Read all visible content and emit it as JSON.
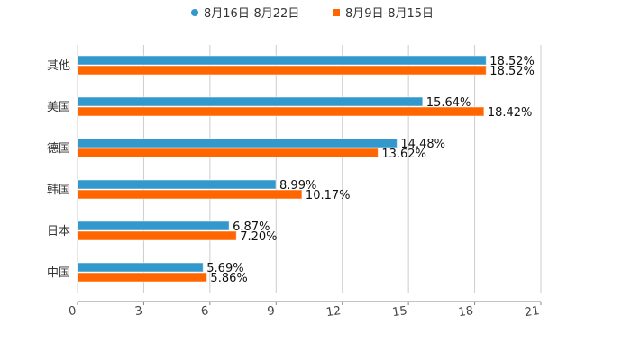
{
  "legend": {
    "series": [
      {
        "name": "8月16日-8月22日",
        "color": "#3399cc",
        "shape": "circle"
      },
      {
        "name": "8月9日-8月15日",
        "color": "#ff6600",
        "shape": "square"
      }
    ]
  },
  "colors": {
    "series_a": "#3399cc",
    "series_b": "#ff6600",
    "grid": "#cccccc",
    "axis": "#888888"
  },
  "chart_data": {
    "type": "bar",
    "orientation": "horizontal",
    "title": "",
    "xlabel": "",
    "ylabel": "",
    "categories": [
      "其他",
      "美国",
      "德国",
      "韩国",
      "日本",
      "中国"
    ],
    "series": [
      {
        "name": "8月16日-8月22日",
        "values": [
          18.52,
          15.64,
          14.48,
          8.99,
          6.87,
          5.69
        ],
        "labels": [
          "18.52%",
          "15.64%",
          "14.48%",
          "8.99%",
          "6.87%",
          "5.69%"
        ]
      },
      {
        "name": "8月9日-8月15日",
        "values": [
          18.52,
          18.42,
          13.62,
          10.17,
          7.2,
          5.86
        ],
        "labels": [
          "18.52%",
          "18.42%",
          "13.62%",
          "10.17%",
          "7.20%",
          "5.86%"
        ]
      }
    ],
    "xlim": [
      0,
      21
    ],
    "xticks": [
      0,
      3,
      6,
      9,
      12,
      15,
      18,
      21
    ],
    "xtick_labels": [
      "0",
      "3",
      "6",
      "9",
      "12",
      "15",
      "18",
      "21"
    ],
    "grid": true,
    "legend_position": "top"
  }
}
